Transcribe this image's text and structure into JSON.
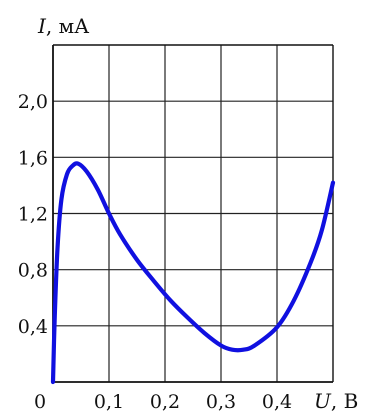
{
  "chart_data": {
    "type": "line",
    "y_axis_label": {
      "symbol": "I",
      "unit": ", мА"
    },
    "x_axis_label": {
      "symbol": "U",
      "unit": ", В"
    },
    "origin_label": "0",
    "x_ticks": [
      {
        "value": 0.1,
        "label": "0,1"
      },
      {
        "value": 0.2,
        "label": "0,2"
      },
      {
        "value": 0.3,
        "label": "0,3"
      },
      {
        "value": 0.4,
        "label": "0,4"
      }
    ],
    "y_ticks": [
      {
        "value": 0.4,
        "label": "0,4"
      },
      {
        "value": 0.8,
        "label": "0,8"
      },
      {
        "value": 1.2,
        "label": "1,2"
      },
      {
        "value": 1.6,
        "label": "1,6"
      },
      {
        "value": 2.0,
        "label": "2,0"
      }
    ],
    "xlim": [
      0,
      0.5
    ],
    "ylim": [
      0,
      2.4
    ],
    "grid": true,
    "series": [
      {
        "color": "#1010e0",
        "points": [
          [
            0.0,
            0.0
          ],
          [
            0.003,
            0.45
          ],
          [
            0.008,
            0.95
          ],
          [
            0.015,
            1.3
          ],
          [
            0.025,
            1.48
          ],
          [
            0.035,
            1.54
          ],
          [
            0.045,
            1.555
          ],
          [
            0.06,
            1.5
          ],
          [
            0.08,
            1.37
          ],
          [
            0.1,
            1.2
          ],
          [
            0.12,
            1.05
          ],
          [
            0.15,
            0.87
          ],
          [
            0.18,
            0.72
          ],
          [
            0.21,
            0.58
          ],
          [
            0.24,
            0.46
          ],
          [
            0.27,
            0.35
          ],
          [
            0.3,
            0.26
          ],
          [
            0.32,
            0.23
          ],
          [
            0.34,
            0.23
          ],
          [
            0.36,
            0.26
          ],
          [
            0.4,
            0.39
          ],
          [
            0.43,
            0.58
          ],
          [
            0.46,
            0.85
          ],
          [
            0.48,
            1.08
          ],
          [
            0.5,
            1.42
          ]
        ]
      }
    ]
  }
}
